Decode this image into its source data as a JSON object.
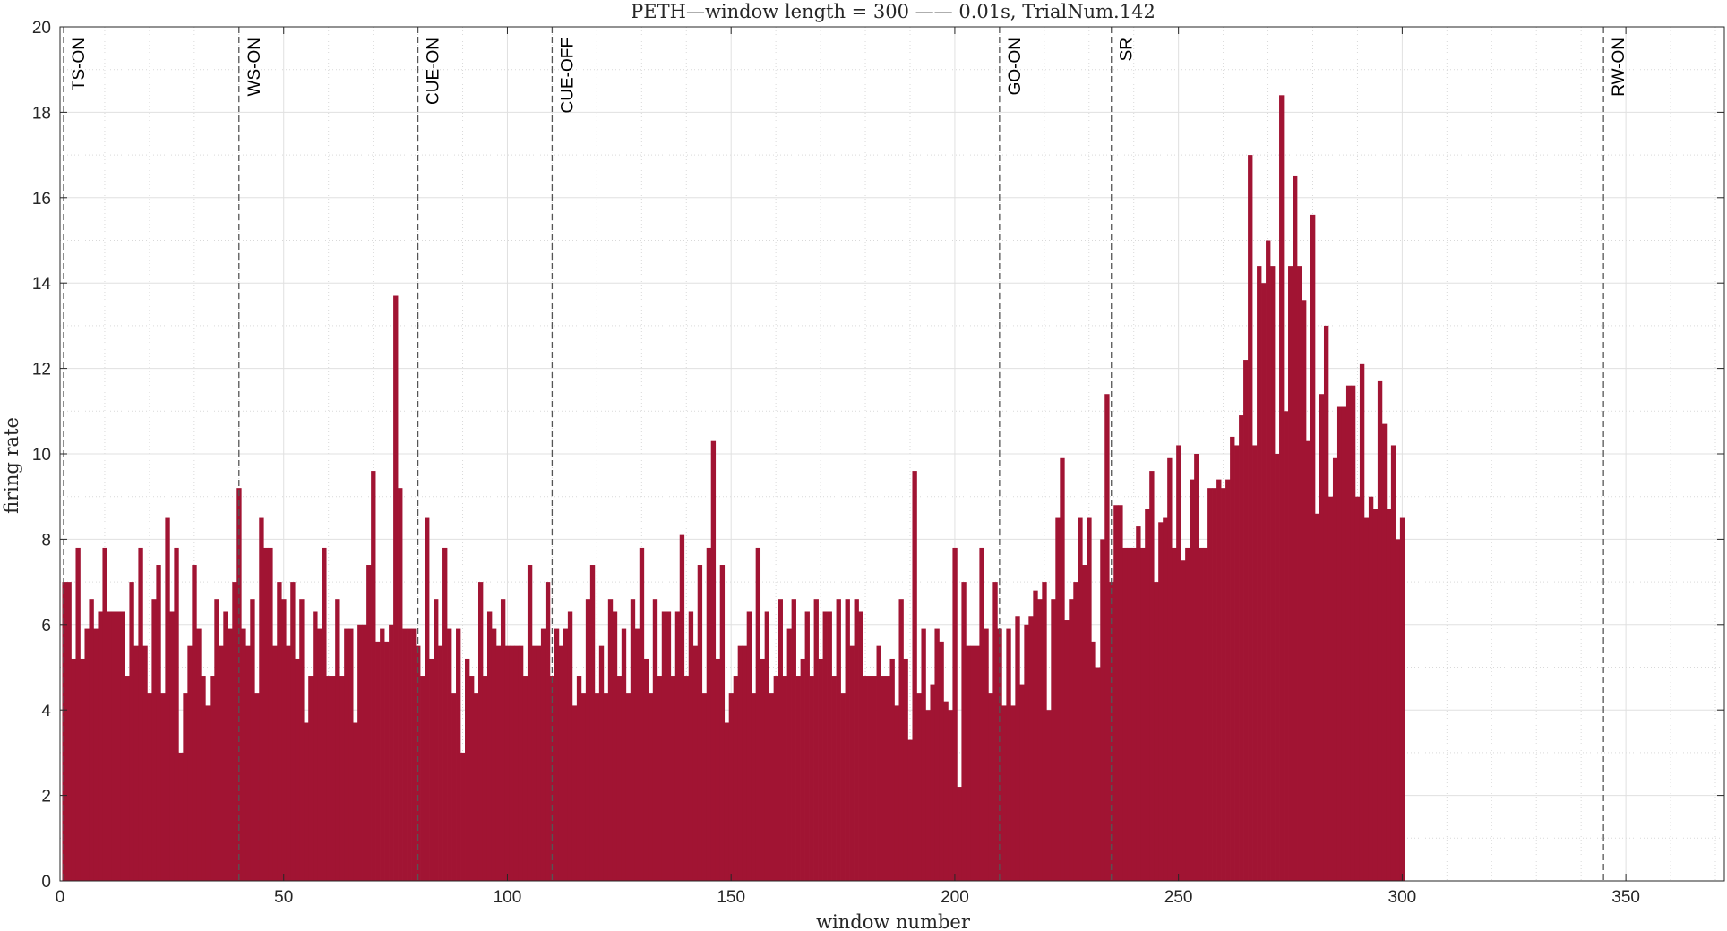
{
  "chart_data": {
    "type": "bar",
    "title": "PETH—window length = 300 —— 0.01s, TrialNum.142",
    "xlabel": "window number",
    "ylabel": "firing rate",
    "xlim": [
      0,
      372
    ],
    "ylim": [
      0,
      20
    ],
    "xticks": [
      0,
      50,
      100,
      150,
      200,
      250,
      300,
      350
    ],
    "yticks": [
      0,
      2,
      4,
      6,
      8,
      10,
      12,
      14,
      16,
      18,
      20
    ],
    "grid": true,
    "minor_grid": true,
    "bar_color": "#a11433",
    "event_line_color": "#555555",
    "events": [
      {
        "label": "TS-ON",
        "x": 0.8
      },
      {
        "label": "WS-ON",
        "x": 40
      },
      {
        "label": "CUE-ON",
        "x": 80
      },
      {
        "label": "CUE-OFF",
        "x": 110
      },
      {
        "label": "GO-ON",
        "x": 210
      },
      {
        "label": "SR",
        "x": 235
      },
      {
        "label": "RW-ON",
        "x": 345
      }
    ],
    "values": [
      7.0,
      7.0,
      5.2,
      7.8,
      5.2,
      5.9,
      6.6,
      5.9,
      6.3,
      7.8,
      6.3,
      6.3,
      6.3,
      6.3,
      4.8,
      7.0,
      5.5,
      7.8,
      5.5,
      4.4,
      6.6,
      7.4,
      4.4,
      8.5,
      6.3,
      7.8,
      3.0,
      4.4,
      5.5,
      7.4,
      5.9,
      4.8,
      4.1,
      4.8,
      6.6,
      5.5,
      6.3,
      5.9,
      7.0,
      9.2,
      5.9,
      5.5,
      6.6,
      4.4,
      8.5,
      7.8,
      7.8,
      5.5,
      7.0,
      6.6,
      5.5,
      7.0,
      5.2,
      6.6,
      3.7,
      4.8,
      6.3,
      5.9,
      7.8,
      4.8,
      4.8,
      6.6,
      4.8,
      5.9,
      5.9,
      3.7,
      6.0,
      6.0,
      7.4,
      9.6,
      5.6,
      5.9,
      5.6,
      6.0,
      13.7,
      9.2,
      5.9,
      5.9,
      5.9,
      5.5,
      4.8,
      8.5,
      5.2,
      6.6,
      5.5,
      7.8,
      5.9,
      4.4,
      5.9,
      3.0,
      5.2,
      4.8,
      4.4,
      7.0,
      4.8,
      6.3,
      5.9,
      5.5,
      6.6,
      5.5,
      5.5,
      5.5,
      5.5,
      4.8,
      7.4,
      5.5,
      5.5,
      5.9,
      7.0,
      4.8,
      5.9,
      5.5,
      5.9,
      6.3,
      4.1,
      4.8,
      4.4,
      6.6,
      7.4,
      4.4,
      5.5,
      4.4,
      6.6,
      6.3,
      4.8,
      5.9,
      4.4,
      6.6,
      5.9,
      7.8,
      5.2,
      4.4,
      6.6,
      4.8,
      6.3,
      6.3,
      4.8,
      6.3,
      8.1,
      4.8,
      6.3,
      5.5,
      7.4,
      4.4,
      7.8,
      10.3,
      5.2,
      7.4,
      3.7,
      4.4,
      4.8,
      5.5,
      5.5,
      6.3,
      4.4,
      7.8,
      5.2,
      6.3,
      4.4,
      4.8,
      6.6,
      4.8,
      5.9,
      6.6,
      4.8,
      5.2,
      6.3,
      4.8,
      6.6,
      5.2,
      6.3,
      6.3,
      4.8,
      6.6,
      4.4,
      6.6,
      5.5,
      6.6,
      6.3,
      4.8,
      4.8,
      4.8,
      5.5,
      4.8,
      4.8,
      5.2,
      4.1,
      6.6,
      5.2,
      3.3,
      9.6,
      4.4,
      5.9,
      4.0,
      4.6,
      5.9,
      5.6,
      4.2,
      4.0,
      7.8,
      2.2,
      7.0,
      5.5,
      5.5,
      5.5,
      7.8,
      5.9,
      4.4,
      7.0,
      5.9,
      4.1,
      5.9,
      4.1,
      6.2,
      4.6,
      6.0,
      6.2,
      6.8,
      6.6,
      7.0,
      4.0,
      6.6,
      8.5,
      9.9,
      6.1,
      6.6,
      7.0,
      8.5,
      7.4,
      8.5,
      5.6,
      5.0,
      8.0,
      11.4,
      7.0,
      8.8,
      8.8,
      7.8,
      7.8,
      7.8,
      8.3,
      7.8,
      8.7,
      9.6,
      7.0,
      8.4,
      8.5,
      9.9,
      7.8,
      10.2,
      7.5,
      7.8,
      9.4,
      10.0,
      7.8,
      7.8,
      9.2,
      9.2,
      9.4,
      9.2,
      9.4,
      10.4,
      10.2,
      10.9,
      12.2,
      17.0,
      10.2,
      14.4,
      14.0,
      15.0,
      14.4,
      10.0,
      18.4,
      11.0,
      14.4,
      16.5,
      14.4,
      13.6,
      10.3,
      15.6,
      8.6,
      11.4,
      13.0,
      9.0,
      9.9,
      11.1,
      11.1,
      11.6,
      11.6,
      9.0,
      12.1,
      8.5,
      9.0,
      8.7,
      11.7,
      10.7,
      8.7,
      10.2,
      8.0,
      8.5
    ]
  }
}
